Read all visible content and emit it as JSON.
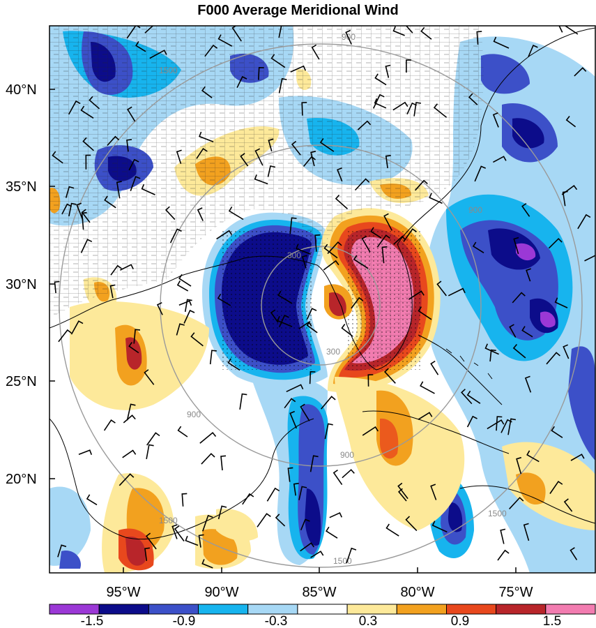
{
  "title": "F000 Average Meridional Wind",
  "lat_labels": [
    "40°N",
    "35°N",
    "30°N",
    "25°N",
    "20°N"
  ],
  "lon_labels": [
    "95°W",
    "90°W",
    "85°W",
    "80°W",
    "75°W"
  ],
  "colorbar": {
    "labels": [
      "-1.5",
      "-0.9",
      "-0.3",
      "0.3",
      "0.9",
      "1.5"
    ],
    "colors": [
      "#9b38d6",
      "#0c0c8a",
      "#3c50c8",
      "#17b4ee",
      "#a7d8f5",
      "#ffffff",
      "#fde99a",
      "#f2a11f",
      "#e8481d",
      "#b8252a",
      "#f27cb0"
    ]
  },
  "range_ring_labels": [
    "300",
    "300",
    "900",
    "900",
    "900",
    "900",
    "1500",
    "1500",
    "1500",
    "1500"
  ],
  "colors": {
    "ring": "#9a9a9a",
    "frame": "#000000"
  }
}
